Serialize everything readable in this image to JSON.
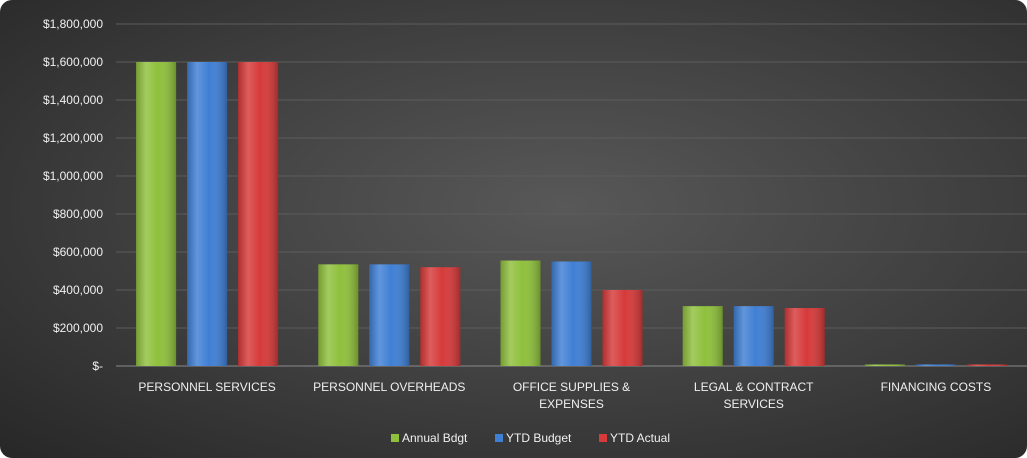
{
  "chart_data": {
    "type": "bar",
    "categories": [
      [
        "PERSONNEL SERVICES"
      ],
      [
        "PERSONNEL OVERHEADS"
      ],
      [
        "OFFICE SUPPLIES &",
        "EXPENSES"
      ],
      [
        "LEGAL & CONTRACT",
        "SERVICES"
      ],
      [
        "FINANCING COSTS"
      ]
    ],
    "series": [
      {
        "name": "Annual Bdgt",
        "color": "#8fc03c",
        "values": [
          1600000,
          535000,
          555000,
          315000,
          8000
        ]
      },
      {
        "name": "YTD Budget",
        "color": "#3f7fd4",
        "values": [
          1600000,
          535000,
          550000,
          315000,
          8000
        ]
      },
      {
        "name": "YTD Actual",
        "color": "#d63a3a",
        "values": [
          1600000,
          520000,
          400000,
          305000,
          3000
        ]
      }
    ],
    "y_ticks": [
      {
        "value": 0,
        "label": "$-"
      },
      {
        "value": 200000,
        "label": "$200,000"
      },
      {
        "value": 400000,
        "label": "$400,000"
      },
      {
        "value": 600000,
        "label": "$600,000"
      },
      {
        "value": 800000,
        "label": "$800,000"
      },
      {
        "value": 1000000,
        "label": "$1,000,000"
      },
      {
        "value": 1200000,
        "label": "$1,200,000"
      },
      {
        "value": 1400000,
        "label": "$1,400,000"
      },
      {
        "value": 1600000,
        "label": "$1,600,000"
      },
      {
        "value": 1800000,
        "label": "$1,800,000"
      }
    ],
    "ylim": [
      0,
      1800000
    ],
    "grid": true,
    "legend_position": "bottom",
    "title": "",
    "xlabel": "",
    "ylabel": ""
  }
}
